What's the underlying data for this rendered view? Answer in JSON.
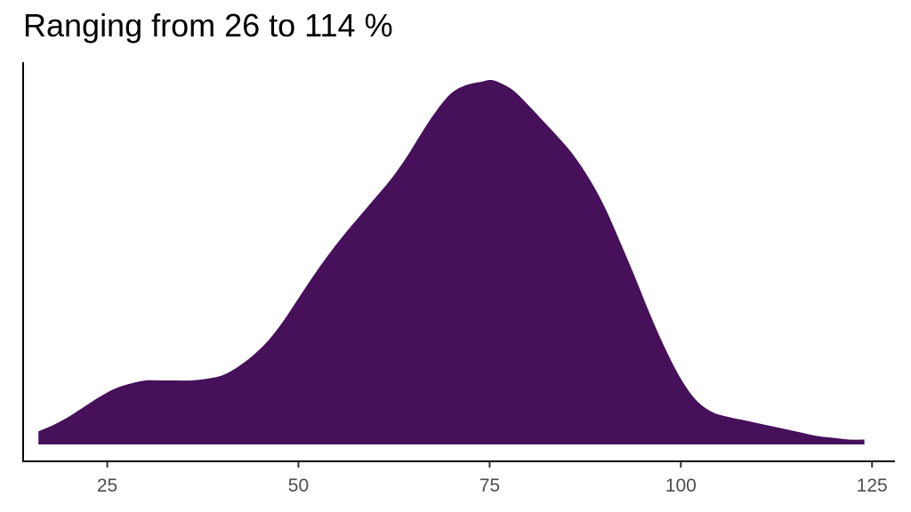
{
  "chart_data": {
    "type": "area",
    "title": "Ranging from 26 to 114 %",
    "xlabel": "",
    "ylabel": "",
    "xlim": [
      14,
      128
    ],
    "ylim": [
      0,
      0.0222
    ],
    "grid": false,
    "fill_color": "#46105B",
    "x_ticks": [
      25,
      50,
      75,
      100,
      125
    ],
    "y_ticks": [],
    "series": [
      {
        "x": [
          16,
          18,
          20,
          22,
          24,
          26,
          28,
          30,
          32,
          34,
          36,
          38,
          40,
          42,
          44,
          46,
          48,
          50,
          52,
          54,
          56,
          58,
          60,
          62,
          64,
          66,
          68,
          70,
          72,
          74,
          75,
          76,
          78,
          80,
          82,
          84,
          86,
          88,
          90,
          92,
          94,
          96,
          98,
          100,
          102,
          104,
          106,
          108,
          110,
          112,
          114,
          116,
          118,
          120,
          122,
          124
        ],
        "y": [
          0.0008,
          0.0012,
          0.0017,
          0.0023,
          0.0029,
          0.0034,
          0.0037,
          0.0039,
          0.0039,
          0.0039,
          0.0039,
          0.004,
          0.0042,
          0.0047,
          0.0054,
          0.0063,
          0.0075,
          0.0089,
          0.0103,
          0.0116,
          0.0128,
          0.0139,
          0.015,
          0.0161,
          0.0174,
          0.0189,
          0.0203,
          0.0214,
          0.0219,
          0.0221,
          0.0222,
          0.0221,
          0.0216,
          0.0207,
          0.0197,
          0.0187,
          0.0176,
          0.0162,
          0.0145,
          0.0124,
          0.0102,
          0.0079,
          0.0058,
          0.004,
          0.0027,
          0.002,
          0.0017,
          0.0015,
          0.0013,
          0.0011,
          0.0009,
          0.0007,
          0.0005,
          0.0004,
          0.0003,
          0.0003
        ]
      }
    ]
  }
}
